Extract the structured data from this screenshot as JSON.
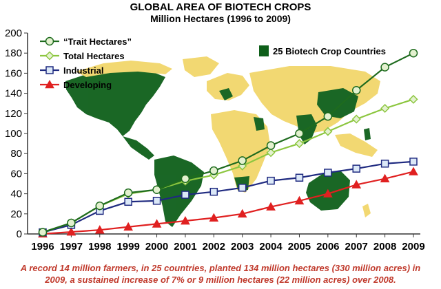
{
  "chart_data": {
    "type": "line",
    "title": "GLOBAL AREA OF BIOTECH CROPS",
    "subtitle": "Million Hectares (1996 to 2009)",
    "xlabel": "",
    "ylabel": "",
    "x": [
      "1996",
      "1997",
      "1998",
      "1999",
      "2000",
      "2001",
      "2002",
      "2003",
      "2004",
      "2005",
      "2006",
      "2007",
      "2008",
      "2009"
    ],
    "ylim": [
      0,
      200
    ],
    "yticks": [
      0,
      20,
      40,
      60,
      80,
      100,
      120,
      140,
      160,
      180,
      200
    ],
    "legend_position": "top-left",
    "series": [
      {
        "name": "“Trait Hectares”",
        "marker": "circle",
        "color": "#1e6b1e",
        "values": [
          1.7,
          11,
          28,
          41,
          44,
          55,
          63,
          73,
          88,
          100,
          117,
          143,
          166,
          180
        ]
      },
      {
        "name": "Total Hectares",
        "marker": "diamond",
        "color": "#8cc63f",
        "values": [
          1.7,
          11,
          27.8,
          39.9,
          44.2,
          52.6,
          58.7,
          67.7,
          81.0,
          90.0,
          102.0,
          114.3,
          125.0,
          134.0
        ]
      },
      {
        "name": "Industrial",
        "marker": "square",
        "color": "#1f2a80",
        "values": [
          1.6,
          9,
          23,
          32,
          33,
          39,
          42,
          46,
          53,
          56,
          61,
          65,
          70,
          72
        ]
      },
      {
        "name": "Developing",
        "marker": "triangle",
        "color": "#e02020",
        "values": [
          0.1,
          2,
          4,
          7,
          10,
          13,
          16,
          20,
          27,
          33,
          40,
          49,
          55,
          62
        ]
      }
    ],
    "map_legend": "25 Biotech Crop Countries",
    "map_legend_color": "#0e5f1a",
    "map_other_color": "#f2d66b"
  },
  "caption_line1": "A record 14 million farmers, in 25 countries, planted 134 million hectares (330 million acres) in",
  "caption_line2": "2009, a sustained increase of 7% or 9 million hectares (22 million acres) over 2008."
}
